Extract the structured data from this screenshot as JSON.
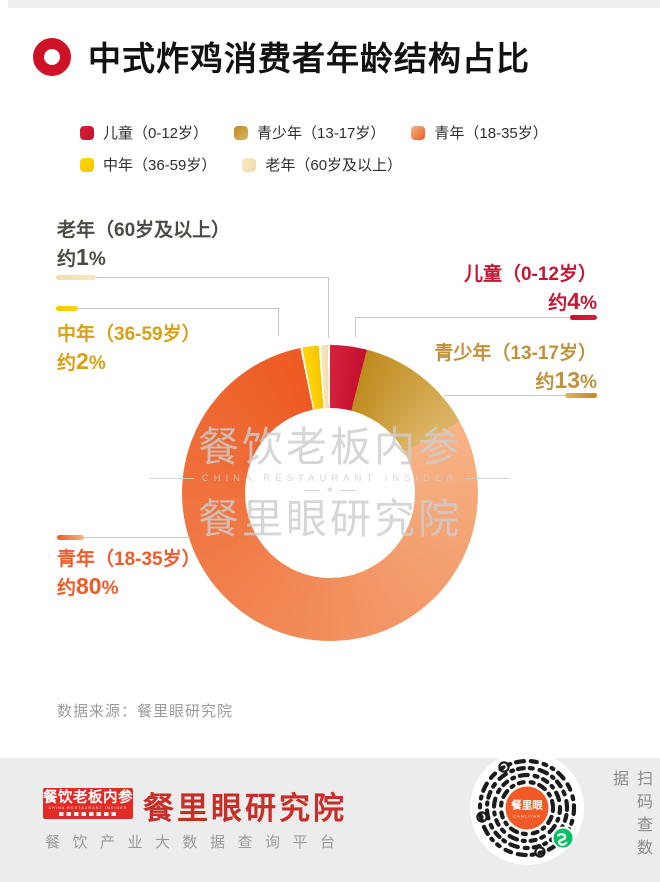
{
  "header": {
    "title": "中式炸鸡消费者年龄结构占比",
    "icon_color": "#CE1126"
  },
  "chart_data": {
    "type": "pie",
    "donut": true,
    "title": "中式炸鸡消费者年龄结构占比",
    "start_angle_deg": 0,
    "direction": "clockwise",
    "legend_position": "top",
    "approx_prefix": "约",
    "pct_suffix": "%",
    "slices": [
      {
        "label": "儿童（0-12岁）",
        "value": 4,
        "pct": "4",
        "color_start": "#D5223C",
        "color_end": "#C5112F",
        "text_color": "#C51733",
        "gap_after": false
      },
      {
        "label": "青少年（13-17岁）",
        "value": 13,
        "pct": "13",
        "color_start": "#BE8B1F",
        "color_end": "#DDB566",
        "text_color": "#C1913A",
        "gap_after": false
      },
      {
        "label": "青年（18-35岁）",
        "value": 80,
        "pct": "80",
        "color_start": "#F6B386",
        "color_end": "#ED5A22",
        "text_color": "#F05A28",
        "gap_after": true
      },
      {
        "label": "中年（36-59岁）",
        "value": 2,
        "pct": "2",
        "color_start": "#FFD60A",
        "color_end": "#F6C500",
        "text_color": "#D8A013",
        "gap_after": true
      },
      {
        "label": "老年（60岁及以上）",
        "value": 1,
        "pct": "1",
        "color_start": "#F8E7C1",
        "color_end": "#F3DDAE",
        "text_color": "#4B4B45",
        "gap_after": true
      }
    ]
  },
  "watermark": {
    "line1": "餐饮老板内参",
    "line2": "CHINA RESTAURANT INSIDER",
    "star": "★",
    "line3": "餐里眼研究院"
  },
  "source": {
    "text": "数据来源：餐里眼研究院"
  },
  "footer": {
    "logo_box": {
      "line1": "餐饮老板内参",
      "line2": "CHINA RESTAURANT INSIDER"
    },
    "brand": "餐里眼研究院",
    "tagline": "餐饮产业大数据查询平台",
    "qr": {
      "center_text": "餐里眼",
      "center_sub": "CANLIYAN",
      "caption": "扫码查数据",
      "center_color": "#F15A24",
      "badge_color": "#07C160"
    }
  }
}
